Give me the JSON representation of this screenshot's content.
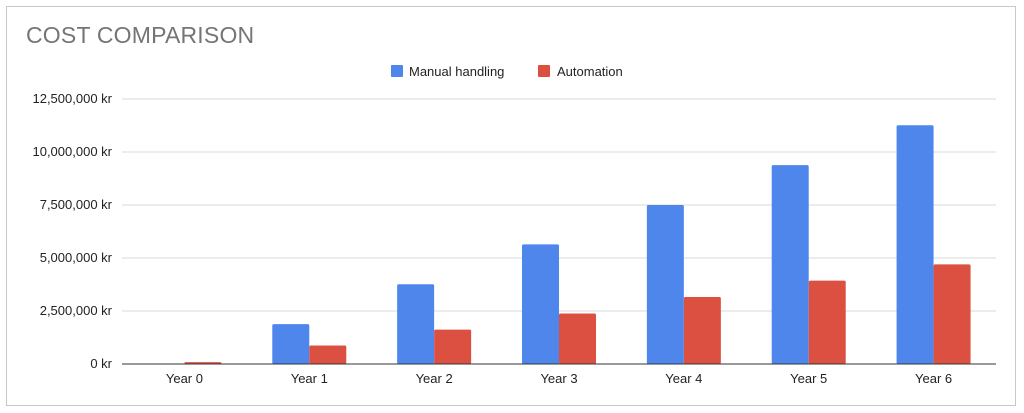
{
  "chart_data": {
    "type": "bar",
    "title": "COST COMPARISON",
    "categories": [
      "Year 0",
      "Year 1",
      "Year 2",
      "Year 3",
      "Year 4",
      "Year 5",
      "Year 6"
    ],
    "series": [
      {
        "name": "Manual handling",
        "color": "#4f86ec",
        "values": [
          0,
          1880000,
          3760000,
          5640000,
          7500000,
          9380000,
          11260000
        ]
      },
      {
        "name": "Automation",
        "color": "#db5041",
        "values": [
          90000,
          870000,
          1620000,
          2380000,
          3160000,
          3930000,
          4700000
        ]
      }
    ],
    "ylim": [
      0,
      12500000
    ],
    "yticks": [
      "0 kr",
      "2,500,000 kr",
      "5,000,000 kr",
      "7,500,000 kr",
      "10,000,000 kr",
      "12,500,000 kr"
    ],
    "ytick_values": [
      0,
      2500000,
      5000000,
      7500000,
      10000000,
      12500000
    ],
    "grid": true,
    "legend_position": "top-center"
  }
}
